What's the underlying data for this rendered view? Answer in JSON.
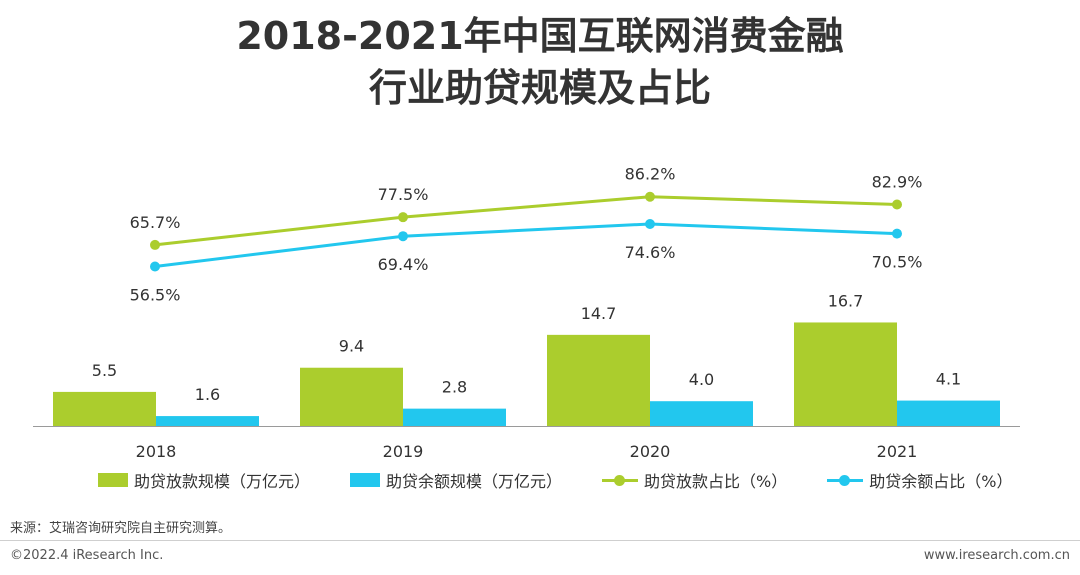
{
  "title": {
    "line1": "2018-2021年中国互联网消费金融",
    "line2": "行业助贷规模及占比"
  },
  "chart_data": {
    "type": "bar+line",
    "title": "2018-2021年中国互联网消费金融行业助贷规模及占比",
    "categories": [
      "2018",
      "2019",
      "2020",
      "2021"
    ],
    "bar_series": [
      {
        "name": "助贷放款规模（万亿元）",
        "values": [
          5.5,
          9.4,
          14.7,
          16.7
        ],
        "labels": [
          "5.5",
          "9.4",
          "14.7",
          "16.7"
        ],
        "color": "#abcd2d"
      },
      {
        "name": "助贷余额规模（万亿元）",
        "values": [
          1.6,
          2.8,
          4.0,
          4.1
        ],
        "labels": [
          "1.6",
          "2.8",
          "4.0",
          "4.1"
        ],
        "color": "#22c7ee"
      }
    ],
    "line_series": [
      {
        "name": "助贷放款占比（%）",
        "values": [
          65.7,
          77.5,
          86.2,
          82.9
        ],
        "labels": [
          "65.7%",
          "77.5%",
          "86.2%",
          "82.9%"
        ],
        "color": "#abcd2d"
      },
      {
        "name": "助贷余额占比（%）",
        "values": [
          56.5,
          69.4,
          74.6,
          70.5
        ],
        "labels": [
          "56.5%",
          "69.4%",
          "74.6%",
          "70.5%"
        ],
        "color": "#22c7ee"
      }
    ],
    "legend_position": "bottom"
  },
  "source": "来源：艾瑞咨询研究院自主研究测算。",
  "footer": {
    "copyright": "©2022.4 iResearch Inc.",
    "website": "www.iresearch.com.cn"
  }
}
